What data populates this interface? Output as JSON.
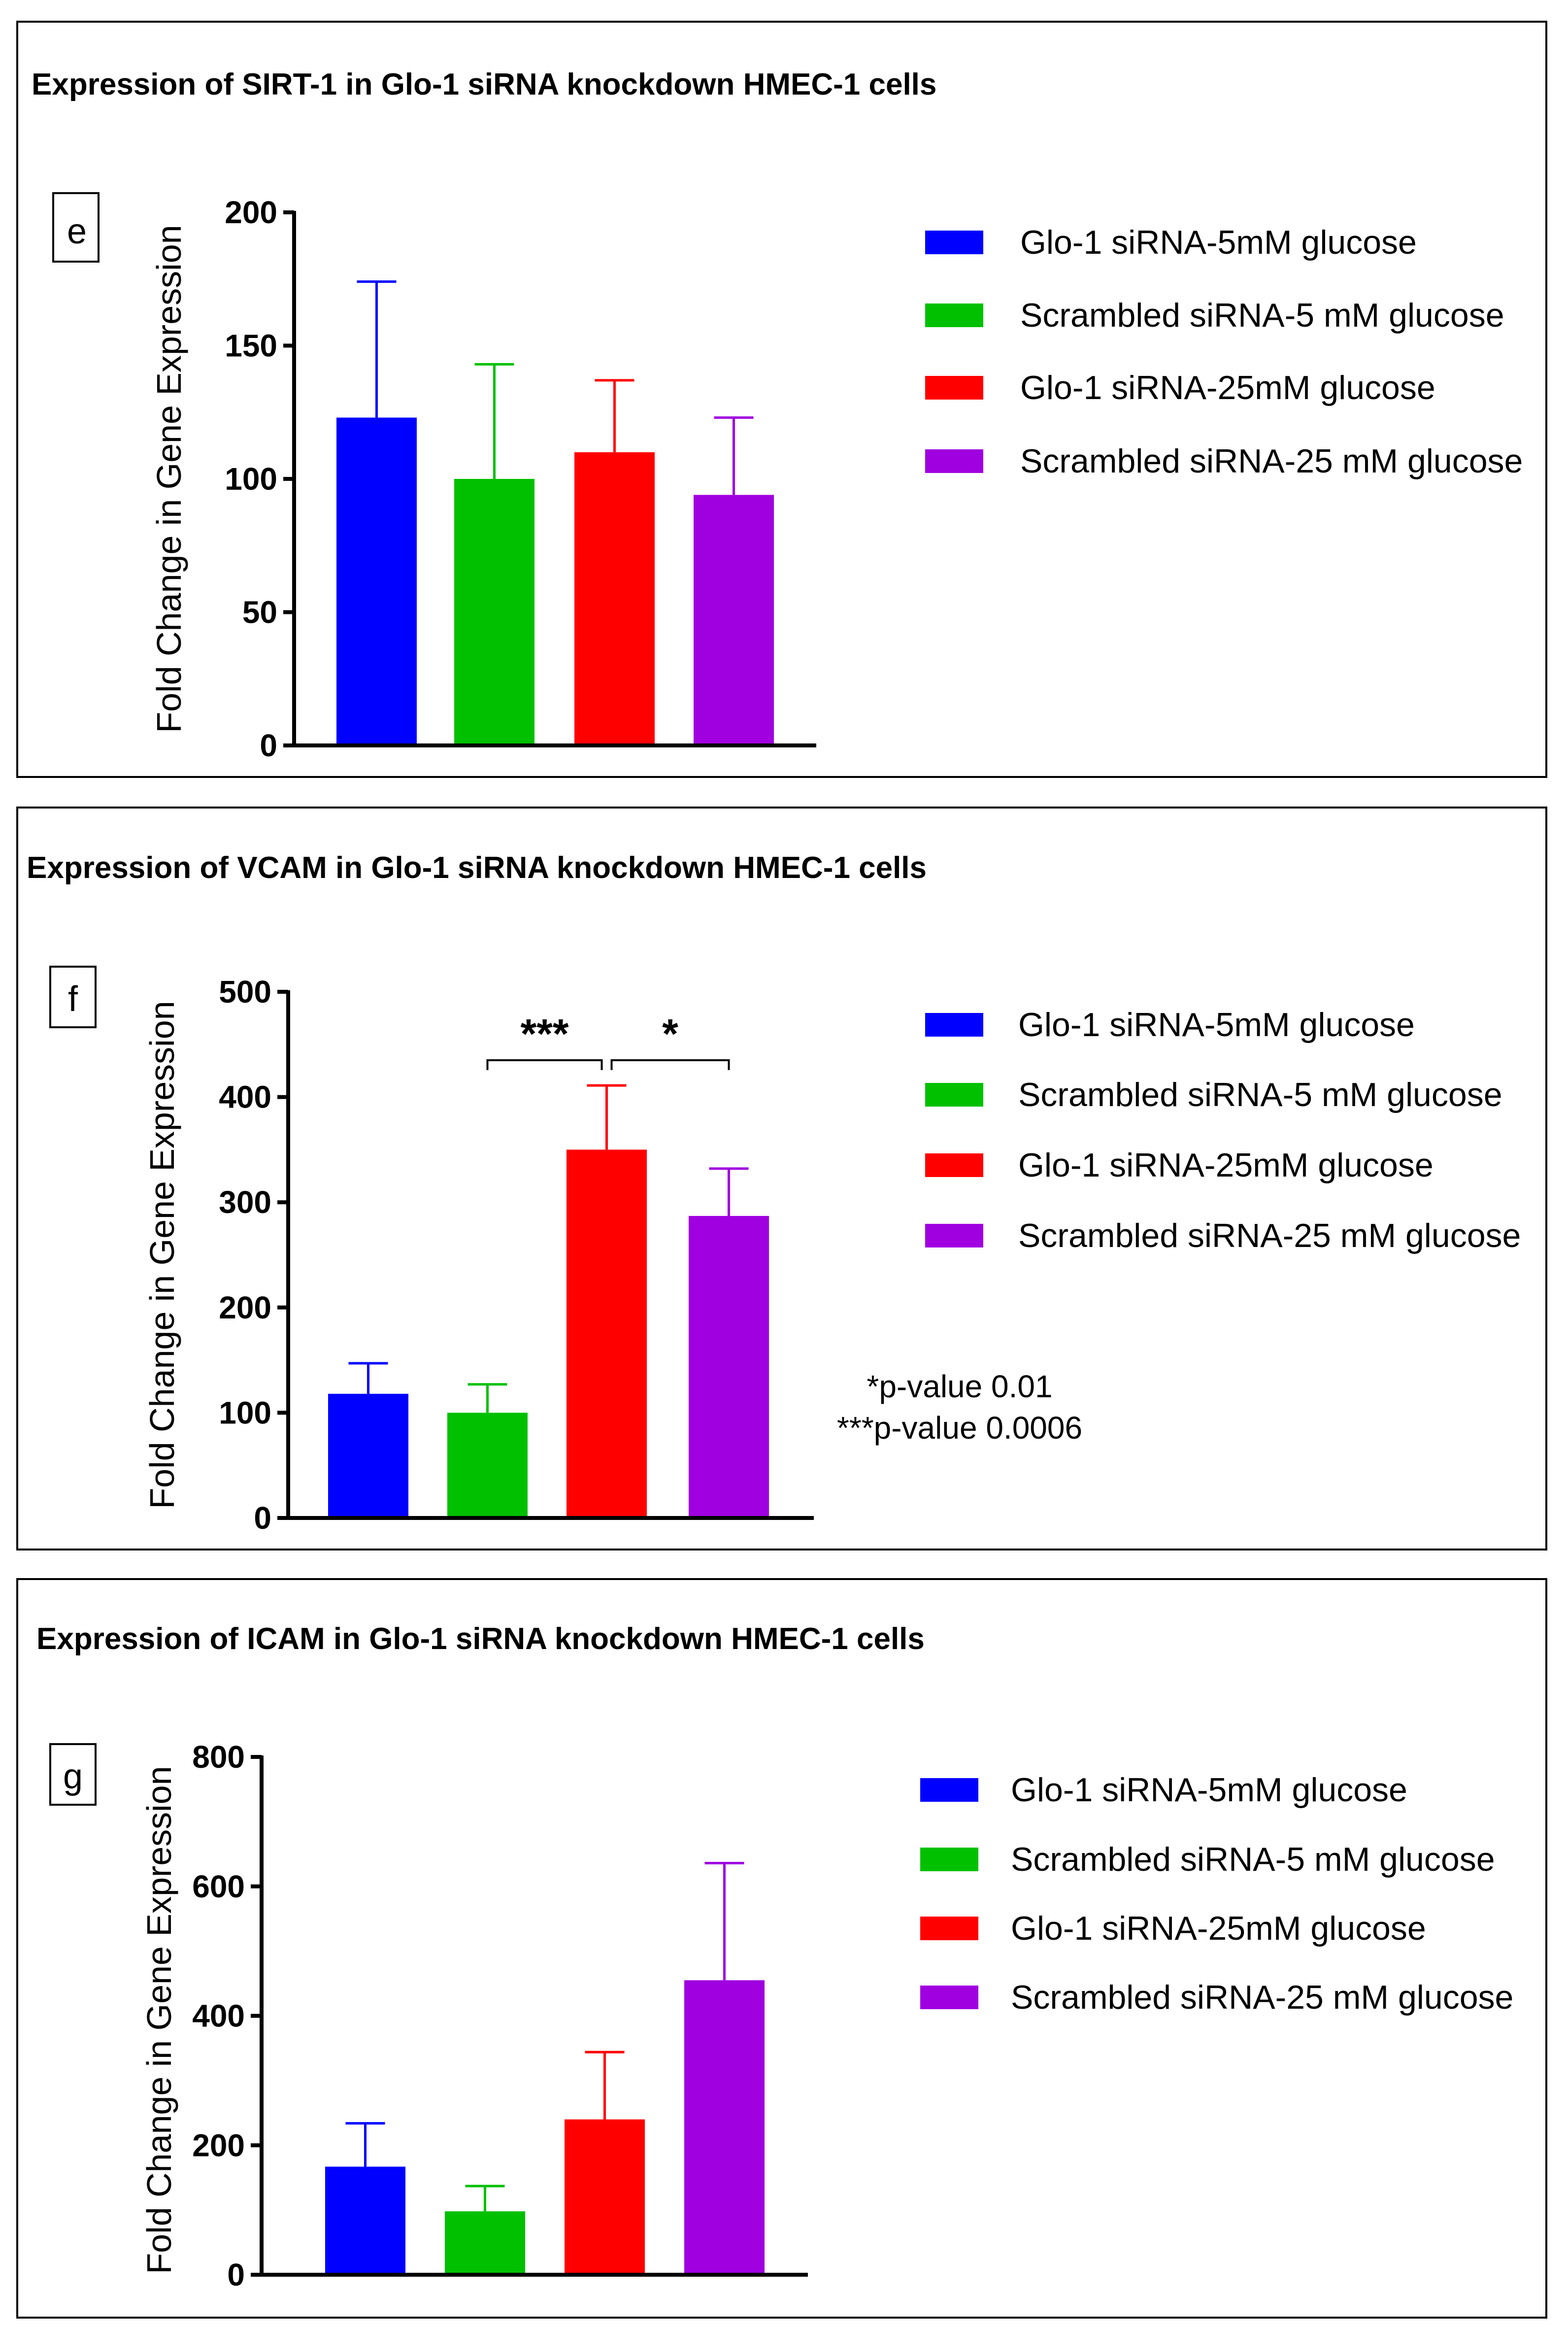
{
  "figure": {
    "colors": {
      "glo1_5mM": "#0000ff",
      "scr_5mM": "#00c000",
      "glo1_25mM": "#ff0000",
      "scr_25mM": "#a000e0"
    }
  },
  "chart_data": [
    {
      "type": "bar",
      "panel_letter": "e",
      "title": "Expression of SIRT-1 in Glo-1 siRNA knockdown HMEC-1 cells",
      "ylabel": "Fold Change in Gene Expression",
      "xlabel": "",
      "ylim": [
        0,
        200
      ],
      "yticks": [
        0,
        50,
        100,
        150,
        200
      ],
      "categories": [
        "Glo-1 siRNA-5mM glucose",
        "Scrambled siRNA-5 mM glucose",
        "Glo-1 siRNA-25mM glucose",
        "Scrambled siRNA-25 mM glucose"
      ],
      "values": [
        123,
        100,
        110,
        94
      ],
      "error_upper": [
        174,
        143,
        137,
        123
      ],
      "legend": [
        "Glo-1 siRNA-5mM glucose",
        "Scrambled siRNA-5 mM glucose",
        "Glo-1 siRNA-25mM glucose",
        "Scrambled siRNA-25 mM glucose"
      ],
      "legend_position": "right",
      "significance": [],
      "notes": []
    },
    {
      "type": "bar",
      "panel_letter": "f",
      "title": "Expression of VCAM in Glo-1 siRNA knockdown HMEC-1 cells",
      "ylabel": "Fold Change in Gene Expression",
      "xlabel": "",
      "ylim": [
        0,
        500
      ],
      "yticks": [
        0,
        100,
        200,
        300,
        400,
        500
      ],
      "categories": [
        "Glo-1 siRNA-5mM glucose",
        "Scrambled siRNA-5 mM glucose",
        "Glo-1 siRNA-25mM glucose",
        "Scrambled siRNA-25 mM glucose"
      ],
      "values": [
        118,
        100,
        350,
        287
      ],
      "error_upper": [
        147,
        127,
        411,
        332
      ],
      "legend": [
        "Glo-1 siRNA-5mM glucose",
        "Scrambled siRNA-5 mM glucose",
        "Glo-1 siRNA-25mM glucose",
        "Scrambled siRNA-25 mM glucose"
      ],
      "legend_position": "right",
      "significance": [
        {
          "from": 1,
          "to": 2,
          "label": "***",
          "level": 435
        },
        {
          "from": 2,
          "to": 3,
          "label": "*",
          "level": 435
        }
      ],
      "notes": [
        "*p-value 0.01",
        "***p-value 0.0006"
      ]
    },
    {
      "type": "bar",
      "panel_letter": "g",
      "title": "Expression of ICAM in Glo-1 siRNA knockdown HMEC-1 cells",
      "ylabel": "Fold Change in Gene Expression",
      "xlabel": "",
      "ylim": [
        0,
        800
      ],
      "yticks": [
        0,
        200,
        400,
        600,
        800
      ],
      "categories": [
        "Glo-1 siRNA-5mM glucose",
        "Scrambled siRNA-5 mM glucose",
        "Glo-1 siRNA-25mM glucose",
        "Scrambled siRNA-25 mM glucose"
      ],
      "values": [
        167,
        98,
        240,
        455
      ],
      "error_upper": [
        234,
        137,
        344,
        636
      ],
      "legend": [
        "Glo-1 siRNA-5mM glucose",
        "Scrambled siRNA-5 mM glucose",
        "Glo-1 siRNA-25mM glucose",
        "Scrambled siRNA-25 mM glucose"
      ],
      "legend_position": "right",
      "significance": [],
      "notes": []
    }
  ]
}
